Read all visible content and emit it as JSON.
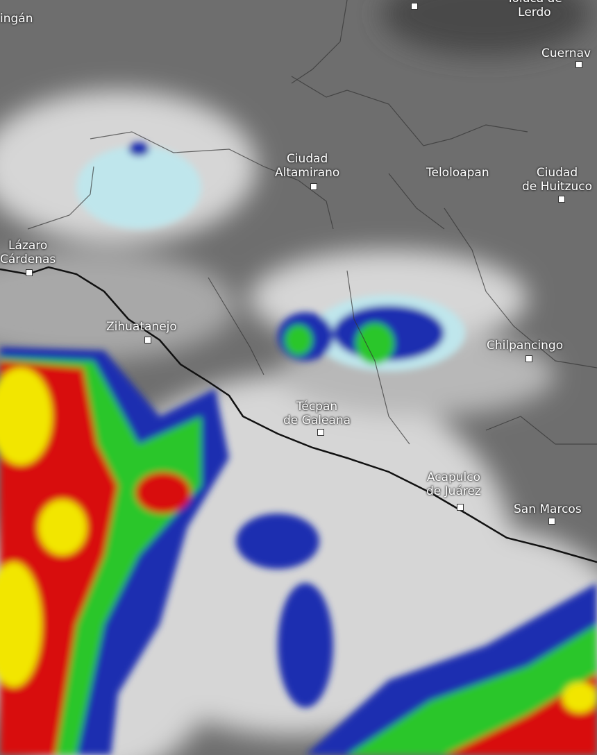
{
  "map": {
    "type": "satellite-radar-overlay",
    "colors": {
      "land": "#6e6e6e",
      "cloud": "#d8d8d8",
      "light": "#bfe6ec",
      "blue": "#1a2fb0",
      "green": "#2bc62b",
      "yellow": "#f2e600",
      "red": "#d80f0f",
      "coastline": "#111111"
    },
    "cities": [
      {
        "name": "Toluca de",
        "line2": "Lerdo"
      },
      {
        "name": "ingán"
      },
      {
        "name": "Cuernav"
      },
      {
        "name": "Ciudad",
        "line2": "Altamirano"
      },
      {
        "name": "Teloloapan"
      },
      {
        "name": "Ciudad",
        "line2": "de Huitzuco"
      },
      {
        "name": "Lázaro",
        "line2": "Cárdenas"
      },
      {
        "name": "Zihuatanejo"
      },
      {
        "name": "Chilpancingo"
      },
      {
        "name": "Técpan",
        "line2": "de Galeana"
      },
      {
        "name": "Acapulco",
        "line2": "de Juárez"
      },
      {
        "name": "San Marcos"
      }
    ]
  }
}
